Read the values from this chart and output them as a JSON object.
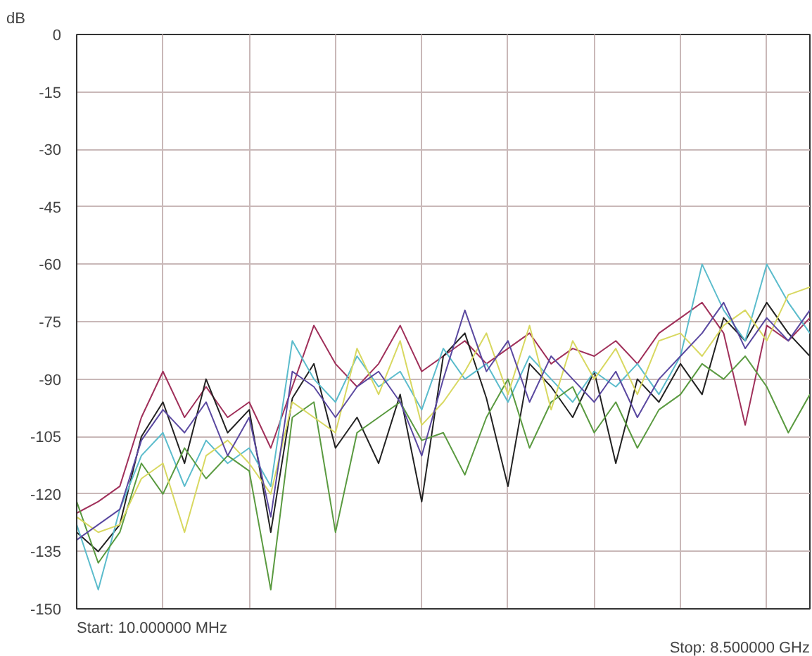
{
  "chart_data": {
    "type": "line",
    "ylabel": "dB",
    "annotations": [
      "Start: 10.000000 MHz",
      "Stop: 8.500000 GHz"
    ],
    "categories": [
      null,
      null,
      null,
      null,
      null,
      null,
      null,
      null,
      null,
      null,
      null,
      null,
      null,
      null,
      null,
      null,
      null,
      null,
      null,
      null,
      null,
      null,
      null,
      null,
      null,
      null,
      null,
      null,
      null,
      null,
      null,
      null,
      null,
      null,
      null
    ],
    "ylim": [
      -150,
      0
    ],
    "yticks": [
      0,
      -15,
      -30,
      -45,
      -60,
      -75,
      -90,
      -105,
      -120,
      -135,
      -150
    ],
    "grid": true,
    "tick_labels": "y",
    "marker": "none",
    "line_style": "solid",
    "series": [
      {
        "color": "#a0305a",
        "values": [
          -125,
          -122,
          -118,
          -100,
          -88,
          -100,
          -92,
          -100,
          -96,
          -108,
          -92,
          -76,
          -86,
          -92,
          -86,
          -76,
          -88,
          -84,
          -80,
          -86,
          -82,
          -78,
          -86,
          -82,
          -84,
          -80,
          -86,
          -78,
          -74,
          -70,
          -78,
          -102,
          -76,
          -80,
          -74
        ]
      },
      {
        "color": "#222222",
        "values": [
          -130,
          -135,
          -128,
          -105,
          -96,
          -112,
          -90,
          -104,
          -98,
          -130,
          -95,
          -86,
          -108,
          -100,
          -112,
          -94,
          -122,
          -84,
          -78,
          -95,
          -118,
          -86,
          -92,
          -100,
          -88,
          -112,
          -90,
          -96,
          -86,
          -94,
          -74,
          -80,
          -70,
          -78,
          -84
        ]
      },
      {
        "color": "#5bbccc",
        "values": [
          -128,
          -145,
          -124,
          -110,
          -104,
          -118,
          -106,
          -112,
          -108,
          -118,
          -80,
          -90,
          -96,
          -84,
          -92,
          -88,
          -98,
          -82,
          -90,
          -86,
          -96,
          -84,
          -90,
          -96,
          -88,
          -92,
          -86,
          -94,
          -84,
          -60,
          -72,
          -80,
          -60,
          -70,
          -78
        ]
      },
      {
        "color": "#5a9a40",
        "values": [
          -122,
          -138,
          -130,
          -112,
          -120,
          -108,
          -116,
          -110,
          -114,
          -145,
          -100,
          -96,
          -130,
          -104,
          -100,
          -96,
          -106,
          -104,
          -115,
          -100,
          -90,
          -108,
          -96,
          -92,
          -104,
          -96,
          -108,
          -98,
          -94,
          -86,
          -90,
          -84,
          -92,
          -104,
          -94
        ]
      },
      {
        "color": "#d8d860",
        "values": [
          -126,
          -130,
          -128,
          -116,
          -112,
          -130,
          -110,
          -106,
          -112,
          -120,
          -96,
          -100,
          -104,
          -82,
          -94,
          -80,
          -102,
          -96,
          -88,
          -78,
          -94,
          -76,
          -98,
          -80,
          -90,
          -82,
          -94,
          -80,
          -78,
          -84,
          -76,
          -72,
          -80,
          -68,
          -66
        ]
      },
      {
        "color": "#5a48a0",
        "values": [
          -132,
          -128,
          -124,
          -106,
          -98,
          -104,
          -96,
          -110,
          -100,
          -126,
          -88,
          -92,
          -100,
          -92,
          -88,
          -96,
          -110,
          -90,
          -72,
          -88,
          -80,
          -96,
          -84,
          -90,
          -96,
          -88,
          -100,
          -90,
          -84,
          -78,
          -70,
          -82,
          -74,
          -80,
          -72
        ]
      }
    ]
  }
}
